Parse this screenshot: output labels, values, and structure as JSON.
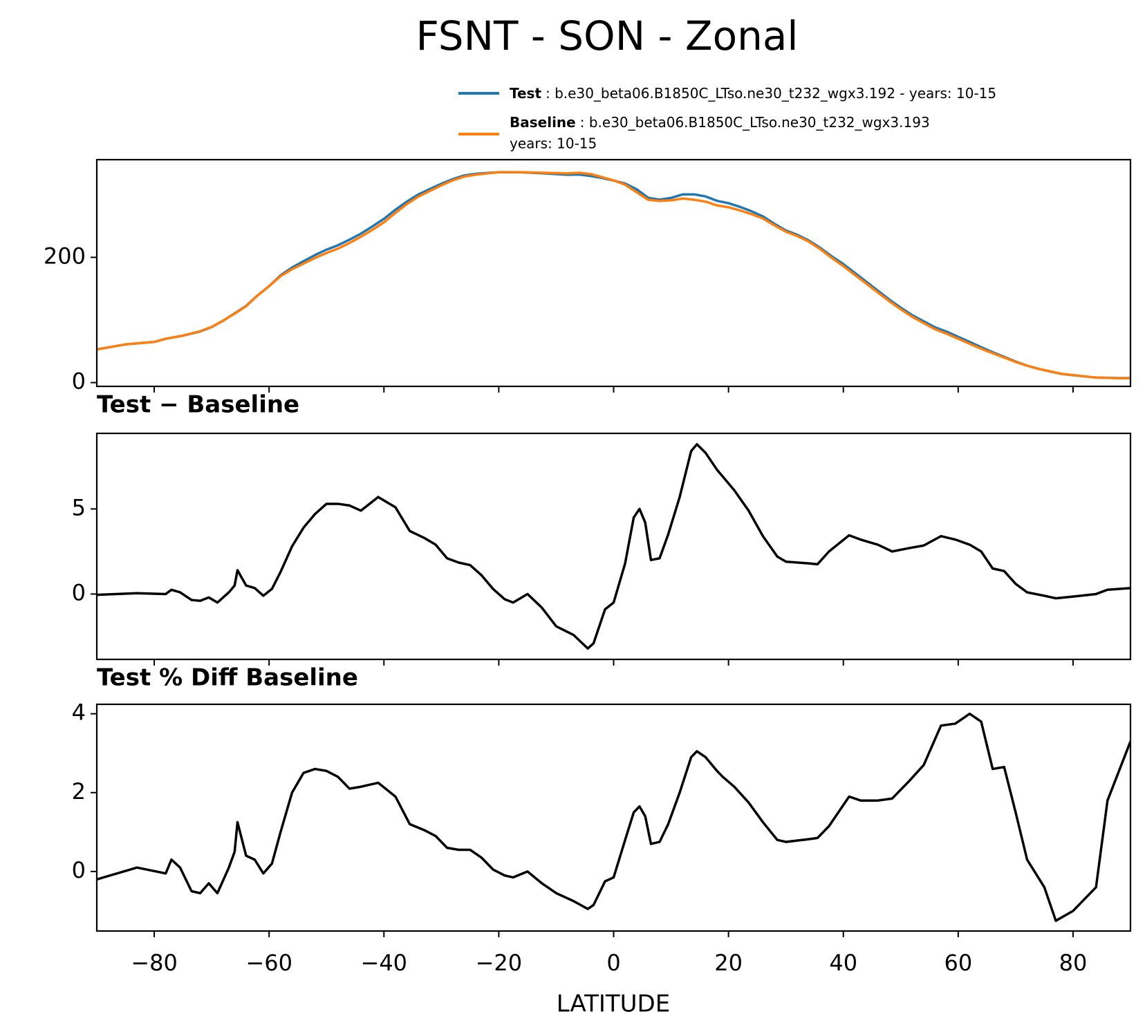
{
  "chart_data": [
    {
      "type": "line",
      "title": "FSNT - SON - Zonal",
      "x": [
        -90,
        -85,
        -80,
        -78,
        -75,
        -72,
        -70,
        -68,
        -66,
        -64,
        -62,
        -60,
        -58,
        -56,
        -54,
        -52,
        -50,
        -48,
        -46,
        -44,
        -42,
        -40,
        -38,
        -36,
        -34,
        -32,
        -30,
        -28,
        -26,
        -24,
        -22,
        -20,
        -16,
        -12,
        -8,
        -6,
        -4,
        -2,
        0,
        2,
        4,
        6,
        8,
        10,
        12,
        14,
        16,
        18,
        20,
        22,
        24,
        26,
        28,
        30,
        32,
        34,
        36,
        38,
        40,
        42,
        44,
        46,
        48,
        50,
        52,
        54,
        56,
        58,
        60,
        62,
        64,
        66,
        68,
        70,
        72,
        74,
        76,
        78,
        80,
        84,
        88,
        90
      ],
      "series": [
        {
          "name": "Test",
          "description": [
            ": b.e30_beta06.B1850C_LTso.ne30_t232_wgx3.192 - years: 10-15"
          ],
          "color": "#1f77b4",
          "values": [
            53,
            61,
            65,
            70,
            75,
            81.6,
            88.7,
            98.8,
            110.6,
            122.5,
            139.3,
            154,
            171.3,
            183.8,
            193.9,
            203.7,
            212.3,
            219.3,
            228.2,
            237.9,
            249.4,
            261.5,
            276.1,
            289,
            300.5,
            309.1,
            317.5,
            325,
            330.8,
            333.4,
            334.7,
            336,
            335.8,
            334,
            331.9,
            332.3,
            329.9,
            326.7,
            322.5,
            317.8,
            308.8,
            295.1,
            292.1,
            295,
            300.5,
            300.6,
            297.3,
            290.3,
            286.5,
            280.6,
            273.6,
            265.4,
            253.5,
            242.9,
            235.9,
            226.8,
            215,
            201.6,
            189.2,
            175.3,
            161,
            146.9,
            132.6,
            119.6,
            107.7,
            97.85,
            88.2,
            81.3,
            73.1,
            64.9,
            56.5,
            48.5,
            41.2,
            33.6,
            27.1,
            21.95,
            17.75,
            13.8,
            11.85,
            8,
            7.3,
            7.35
          ]
        },
        {
          "name": "Baseline",
          "description": [
            ": b.e30_beta06.B1850C_LTso.ne30_t232_wgx3.193",
            "years: 10-15"
          ],
          "color": "#ff7f0e",
          "values": [
            53,
            61,
            65,
            70,
            75,
            82,
            89,
            99,
            110,
            122,
            139,
            154,
            170,
            181,
            190,
            199,
            207,
            214,
            223,
            233,
            244,
            256,
            271,
            285,
            297,
            306,
            315,
            323,
            329,
            332,
            334,
            336,
            336,
            335,
            334,
            335,
            333,
            328,
            323,
            316,
            304,
            292,
            290,
            291,
            294,
            292,
            289,
            283,
            280,
            275,
            269,
            262,
            251,
            241,
            234,
            225,
            213,
            199,
            186,
            172,
            158,
            144,
            130,
            117,
            105,
            95,
            85,
            78,
            70,
            62,
            54,
            47,
            40,
            33,
            27,
            22,
            18,
            14,
            12,
            8,
            7,
            7
          ]
        }
      ],
      "xlim": [
        -90,
        90
      ],
      "xticks": [
        -80,
        -60,
        -40,
        -20,
        0,
        20,
        40,
        60,
        80
      ],
      "ylim": [
        -6,
        356
      ],
      "yticks": [
        0,
        200
      ]
    },
    {
      "type": "line",
      "title": "Test − Baseline",
      "x": [
        -90,
        -83,
        -78,
        -77,
        -75.5,
        -73.5,
        -72,
        -70.5,
        -69,
        -67,
        -66,
        -65.5,
        -64,
        -62.5,
        -61,
        -59.5,
        -58,
        -56,
        -54,
        -52,
        -50,
        -48,
        -46,
        -44,
        -41,
        -38,
        -35.5,
        -33,
        -31,
        -29,
        -27,
        -25,
        -23,
        -21,
        -19,
        -17.5,
        -15,
        -12.5,
        -10,
        -7,
        -4.5,
        -3.5,
        -1.5,
        0,
        2,
        3.5,
        4.5,
        5.5,
        6.5,
        8,
        9.5,
        11.5,
        13.5,
        14.5,
        16,
        18,
        19,
        21,
        23.5,
        26,
        28.5,
        30,
        34,
        35.5,
        37.5,
        41,
        43,
        46,
        48.5,
        51.5,
        54,
        57,
        59.5,
        62,
        64,
        66,
        68,
        70,
        72,
        75,
        77,
        80,
        84,
        86,
        90
      ],
      "values": [
        -0.05,
        0.05,
        0,
        0.25,
        0.1,
        -0.35,
        -0.4,
        -0.2,
        -0.5,
        0.1,
        0.5,
        1.4,
        0.5,
        0.35,
        -0.1,
        0.3,
        1.3,
        2.8,
        3.9,
        4.7,
        5.3,
        5.3,
        5.2,
        4.9,
        5.7,
        5.1,
        3.7,
        3.3,
        2.9,
        2.1,
        1.85,
        1.7,
        1.1,
        0.3,
        -0.3,
        -0.5,
        0,
        -0.8,
        -1.9,
        -2.4,
        -3.2,
        -2.9,
        -0.9,
        -0.5,
        1.8,
        4.5,
        5.0,
        4.2,
        2.0,
        2.1,
        3.5,
        5.7,
        8.4,
        8.8,
        8.3,
        7.3,
        6.9,
        6.1,
        4.9,
        3.4,
        2.2,
        1.9,
        1.8,
        1.75,
        2.5,
        3.45,
        3.2,
        2.9,
        2.5,
        2.7,
        2.85,
        3.4,
        3.2,
        2.9,
        2.5,
        1.5,
        1.35,
        0.6,
        0.1,
        -0.1,
        -0.25,
        -0.15,
        0,
        0.25,
        0.35
      ],
      "color": "#000000",
      "xlim": [
        -90,
        90
      ],
      "xticks": [
        -80,
        -60,
        -40,
        -20,
        0,
        20,
        40,
        60,
        80
      ],
      "ylim": [
        -3.84,
        9.44
      ],
      "yticks": [
        0,
        5
      ]
    },
    {
      "type": "line",
      "title": "Test % Diff Baseline",
      "xlabel": "LATITUDE",
      "x": [
        -90,
        -83,
        -78,
        -77,
        -75.5,
        -73.5,
        -72,
        -70.5,
        -69,
        -67,
        -66,
        -65.5,
        -64,
        -62.5,
        -61,
        -59.5,
        -58,
        -56,
        -54,
        -52,
        -50,
        -48,
        -46,
        -44,
        -41,
        -38,
        -35.5,
        -33,
        -31,
        -29,
        -27,
        -25,
        -23,
        -21,
        -19,
        -17.5,
        -15,
        -12.5,
        -10,
        -7,
        -4.5,
        -3.5,
        -1.5,
        0,
        2,
        3.5,
        4.5,
        5.5,
        6.5,
        8,
        9.5,
        11.5,
        13.5,
        14.5,
        16,
        18,
        19,
        21,
        23.5,
        26,
        28.5,
        30,
        34,
        35.5,
        37.5,
        41,
        43,
        46,
        48.5,
        51.5,
        54,
        57,
        59.5,
        62,
        64,
        66,
        68,
        70,
        72,
        75,
        77,
        80,
        84,
        86,
        90
      ],
      "values": [
        -0.2,
        0.1,
        -0.05,
        0.3,
        0.1,
        -0.5,
        -0.55,
        -0.3,
        -0.55,
        0.1,
        0.5,
        1.25,
        0.4,
        0.3,
        -0.05,
        0.2,
        1.0,
        2.0,
        2.5,
        2.6,
        2.55,
        2.4,
        2.1,
        2.15,
        2.25,
        1.9,
        1.2,
        1.05,
        0.9,
        0.6,
        0.55,
        0.55,
        0.35,
        0.05,
        -0.1,
        -0.15,
        0,
        -0.3,
        -0.55,
        -0.75,
        -0.95,
        -0.85,
        -0.25,
        -0.15,
        0.8,
        1.5,
        1.65,
        1.4,
        0.7,
        0.75,
        1.2,
        2.0,
        2.9,
        3.05,
        2.9,
        2.55,
        2.4,
        2.15,
        1.75,
        1.25,
        0.8,
        0.75,
        0.82,
        0.85,
        1.15,
        1.9,
        1.8,
        1.8,
        1.85,
        2.3,
        2.7,
        3.7,
        3.75,
        4.0,
        3.8,
        2.6,
        2.65,
        1.5,
        0.3,
        -0.4,
        -1.25,
        -1.0,
        -0.4,
        1.8,
        3.3
      ],
      "color": "#000000",
      "xlim": [
        -90,
        90
      ],
      "xticks": [
        {
          "value": -80,
          "label": "−80"
        },
        {
          "value": -60,
          "label": "−60"
        },
        {
          "value": -40,
          "label": "−40"
        },
        {
          "value": -20,
          "label": "−20"
        },
        0,
        20,
        40,
        60,
        80
      ],
      "ylim": [
        -1.51,
        4.24
      ],
      "yticks": [
        0,
        2,
        4
      ]
    }
  ]
}
